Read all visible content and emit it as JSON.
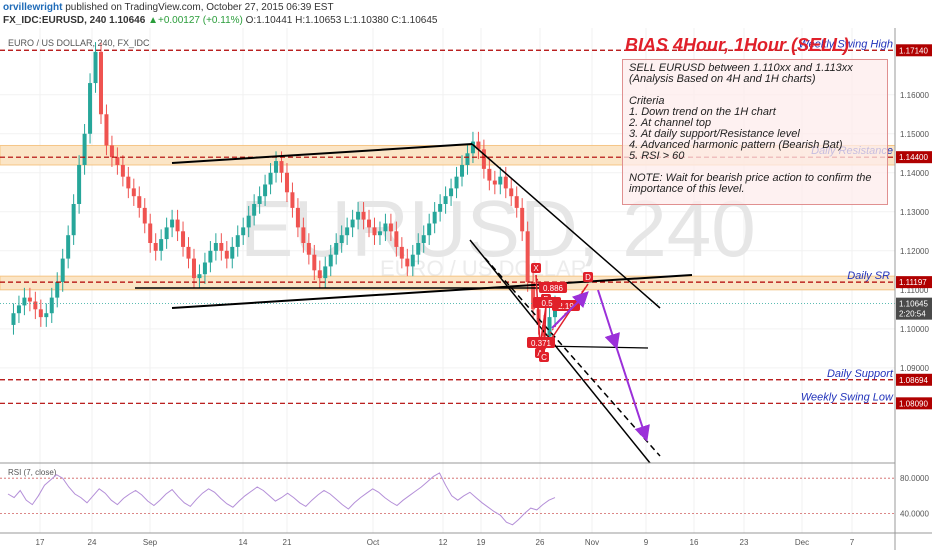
{
  "header": {
    "author": "orvillewright",
    "published": " published on TradingView.com, October 27, 2015 06:39 EST",
    "symbol": "FX_IDC:EURUSD, 240",
    "last": " 1.10646 ",
    "change": "▲+0.00127 (+0.11%)",
    "ohlc": " O:1.10441 H:1.10653 L:1.10380 C:1.10645"
  },
  "chart_title": "EURO / US DOLLAR, 240, FX_IDC",
  "watermark": {
    "symbol": "EURUSD, 240",
    "name": "EURO / US DOLLAR"
  },
  "bias_title": "BIAS 4Hour, 1Hour (SELL)",
  "notes": [
    "SELL EURUSD between 1.110xx and 1.113xx",
    "(Analysis Based on 4H and 1H charts)",
    "",
    "Criteria",
    "1. Down trend on the 1H chart",
    "2. At channel top",
    "3. At daily support/Resistance level",
    "4. Advanced harmonic pattern (Bearish Bat)",
    "5. RSI > 60",
    "",
    "NOTE: Wait for bearish price action to confirm the",
    "importance of this level."
  ],
  "colors": {
    "up": "#26a69a",
    "down": "#ef5350",
    "level": "#b00000",
    "zone": "#f5c07a",
    "arrow": "#9b30d9",
    "pattern": "#e0202a"
  },
  "chart_data": {
    "type": "line",
    "price_axis": {
      "ylim": [
        1.0715,
        1.1766
      ],
      "ticks": [
        "1.16000",
        "1.15000",
        "1.14000",
        "1.13000",
        "1.12000",
        "1.11000",
        "1.10000",
        "1.09000"
      ]
    },
    "x_ticks": [
      "17",
      "24",
      "Sep",
      "14",
      "21",
      "Oct",
      "12",
      "19",
      "26",
      "Nov",
      "9",
      "16",
      "23",
      "Dec",
      "7"
    ],
    "price_series": [
      1.101,
      1.104,
      1.106,
      1.108,
      1.107,
      1.105,
      1.103,
      1.104,
      1.108,
      1.112,
      1.118,
      1.124,
      1.132,
      1.142,
      1.15,
      1.163,
      1.171,
      1.155,
      1.147,
      1.144,
      1.142,
      1.139,
      1.136,
      1.134,
      1.131,
      1.127,
      1.122,
      1.12,
      1.123,
      1.126,
      1.128,
      1.125,
      1.121,
      1.118,
      1.113,
      1.114,
      1.117,
      1.12,
      1.122,
      1.12,
      1.118,
      1.121,
      1.124,
      1.126,
      1.129,
      1.132,
      1.134,
      1.137,
      1.14,
      1.143,
      1.14,
      1.135,
      1.131,
      1.126,
      1.122,
      1.119,
      1.115,
      1.113,
      1.116,
      1.119,
      1.122,
      1.124,
      1.126,
      1.128,
      1.13,
      1.128,
      1.126,
      1.124,
      1.125,
      1.127,
      1.125,
      1.121,
      1.118,
      1.116,
      1.119,
      1.122,
      1.124,
      1.127,
      1.13,
      1.132,
      1.134,
      1.136,
      1.139,
      1.142,
      1.145,
      1.148,
      1.146,
      1.141,
      1.138,
      1.137,
      1.139,
      1.136,
      1.134,
      1.131,
      1.125,
      1.112,
      1.105,
      1.101,
      1.098,
      1.103,
      1.106
    ],
    "levels": [
      {
        "price": 1.1714,
        "label": "Weekly Swing High",
        "tag": "1.17140"
      },
      {
        "price": 1.144,
        "label": "Daily Resistance",
        "tag": "1.14400"
      },
      {
        "price": 1.11197,
        "label": "Daily SR",
        "tag": "1.11197"
      },
      {
        "price": 1.08694,
        "label": "Daily Support",
        "tag": "1.08694"
      },
      {
        "price": 1.0809,
        "label": "Weekly Swing Low",
        "tag": "1.08090"
      }
    ],
    "current_price": {
      "tag": "1.10645",
      "countdown": "2:20:54"
    },
    "pattern_points": [
      "X",
      "A",
      "B",
      "C",
      "D"
    ],
    "pattern_ratios": [
      "0.886",
      "2.19",
      "0.5",
      "0.371"
    ],
    "rsi": {
      "label": "RSI (7, close)",
      "ticks": [
        "80.0000",
        "40.0000"
      ],
      "ylim": [
        20,
        95
      ],
      "values": [
        62,
        58,
        66,
        55,
        50,
        60,
        72,
        78,
        84,
        80,
        70,
        62,
        58,
        52,
        60,
        68,
        63,
        55,
        50,
        57,
        62,
        66,
        61,
        54,
        49,
        55,
        62,
        67,
        59,
        52,
        48,
        56,
        63,
        68,
        64,
        57,
        51,
        47,
        54,
        60,
        65,
        70,
        66,
        60,
        54,
        58,
        63,
        58,
        52,
        48,
        55,
        61,
        66,
        62,
        56,
        50,
        45,
        52,
        58,
        63,
        68,
        64,
        58,
        53,
        49,
        55,
        60,
        65,
        70,
        76,
        82,
        86,
        72,
        60,
        55,
        60,
        64,
        58,
        52,
        47,
        42,
        38,
        30,
        27,
        33,
        40,
        46,
        44,
        50,
        55,
        58
      ]
    }
  }
}
